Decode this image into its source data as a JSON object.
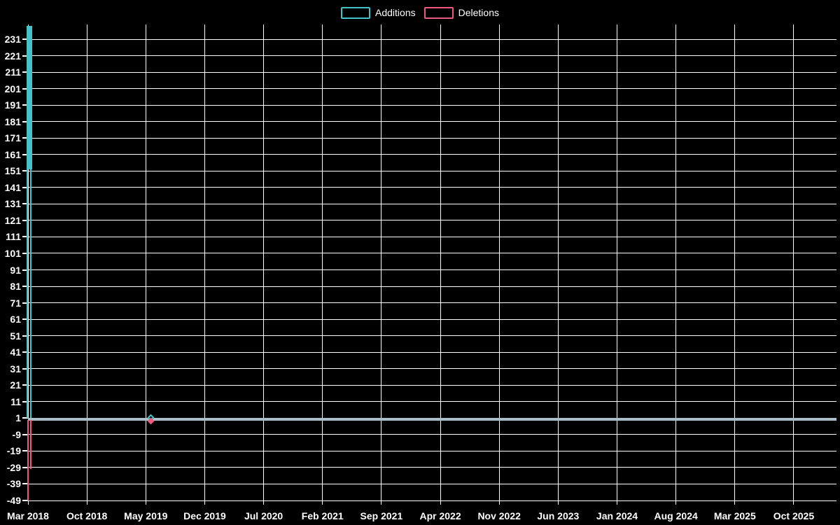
{
  "chart_data": {
    "type": "line",
    "title": "",
    "legend_position": "top-center",
    "grid": true,
    "background_color": "#000000",
    "grid_color": "#ffffff",
    "text_color": "#ffffff",
    "baseline_line_color": "#a9bec9",
    "xlabel": "",
    "ylabel": "",
    "x_ticks": [
      "Mar 2018",
      "Oct 2018",
      "May 2019",
      "Dec 2019",
      "Jul 2020",
      "Feb 2021",
      "Sep 2021",
      "Apr 2022",
      "Nov 2022",
      "Jun 2023",
      "Jan 2024",
      "Aug 2024",
      "Mar 2025",
      "Oct 2025"
    ],
    "y_ticks": [
      231,
      221,
      211,
      201,
      191,
      181,
      171,
      161,
      151,
      141,
      131,
      121,
      111,
      101,
      91,
      81,
      71,
      61,
      51,
      41,
      31,
      21,
      11,
      1,
      -9,
      -19,
      -29,
      -39,
      -49
    ],
    "ylim": [
      -49,
      240
    ],
    "marker_shape": "diamond",
    "visible_marker_x": "May 2019",
    "series": [
      {
        "name": "Additions",
        "color": "#44c2c7",
        "baseline": 1,
        "points": [
          [
            "Mar 2018",
            239
          ],
          [
            "Mar 2018",
            1
          ],
          [
            "Mar 2018",
            152
          ],
          [
            "Mar 2018",
            1
          ],
          [
            "May 2019",
            1
          ],
          [
            "Oct 2025",
            1
          ]
        ]
      },
      {
        "name": "Deletions",
        "color": "#ef597d",
        "baseline": 0,
        "points": [
          [
            "Mar 2018",
            -49
          ],
          [
            "Mar 2018",
            0
          ],
          [
            "Mar 2018",
            -30
          ],
          [
            "Mar 2018",
            0
          ],
          [
            "May 2019",
            0
          ],
          [
            "Oct 2025",
            0
          ]
        ]
      }
    ]
  }
}
